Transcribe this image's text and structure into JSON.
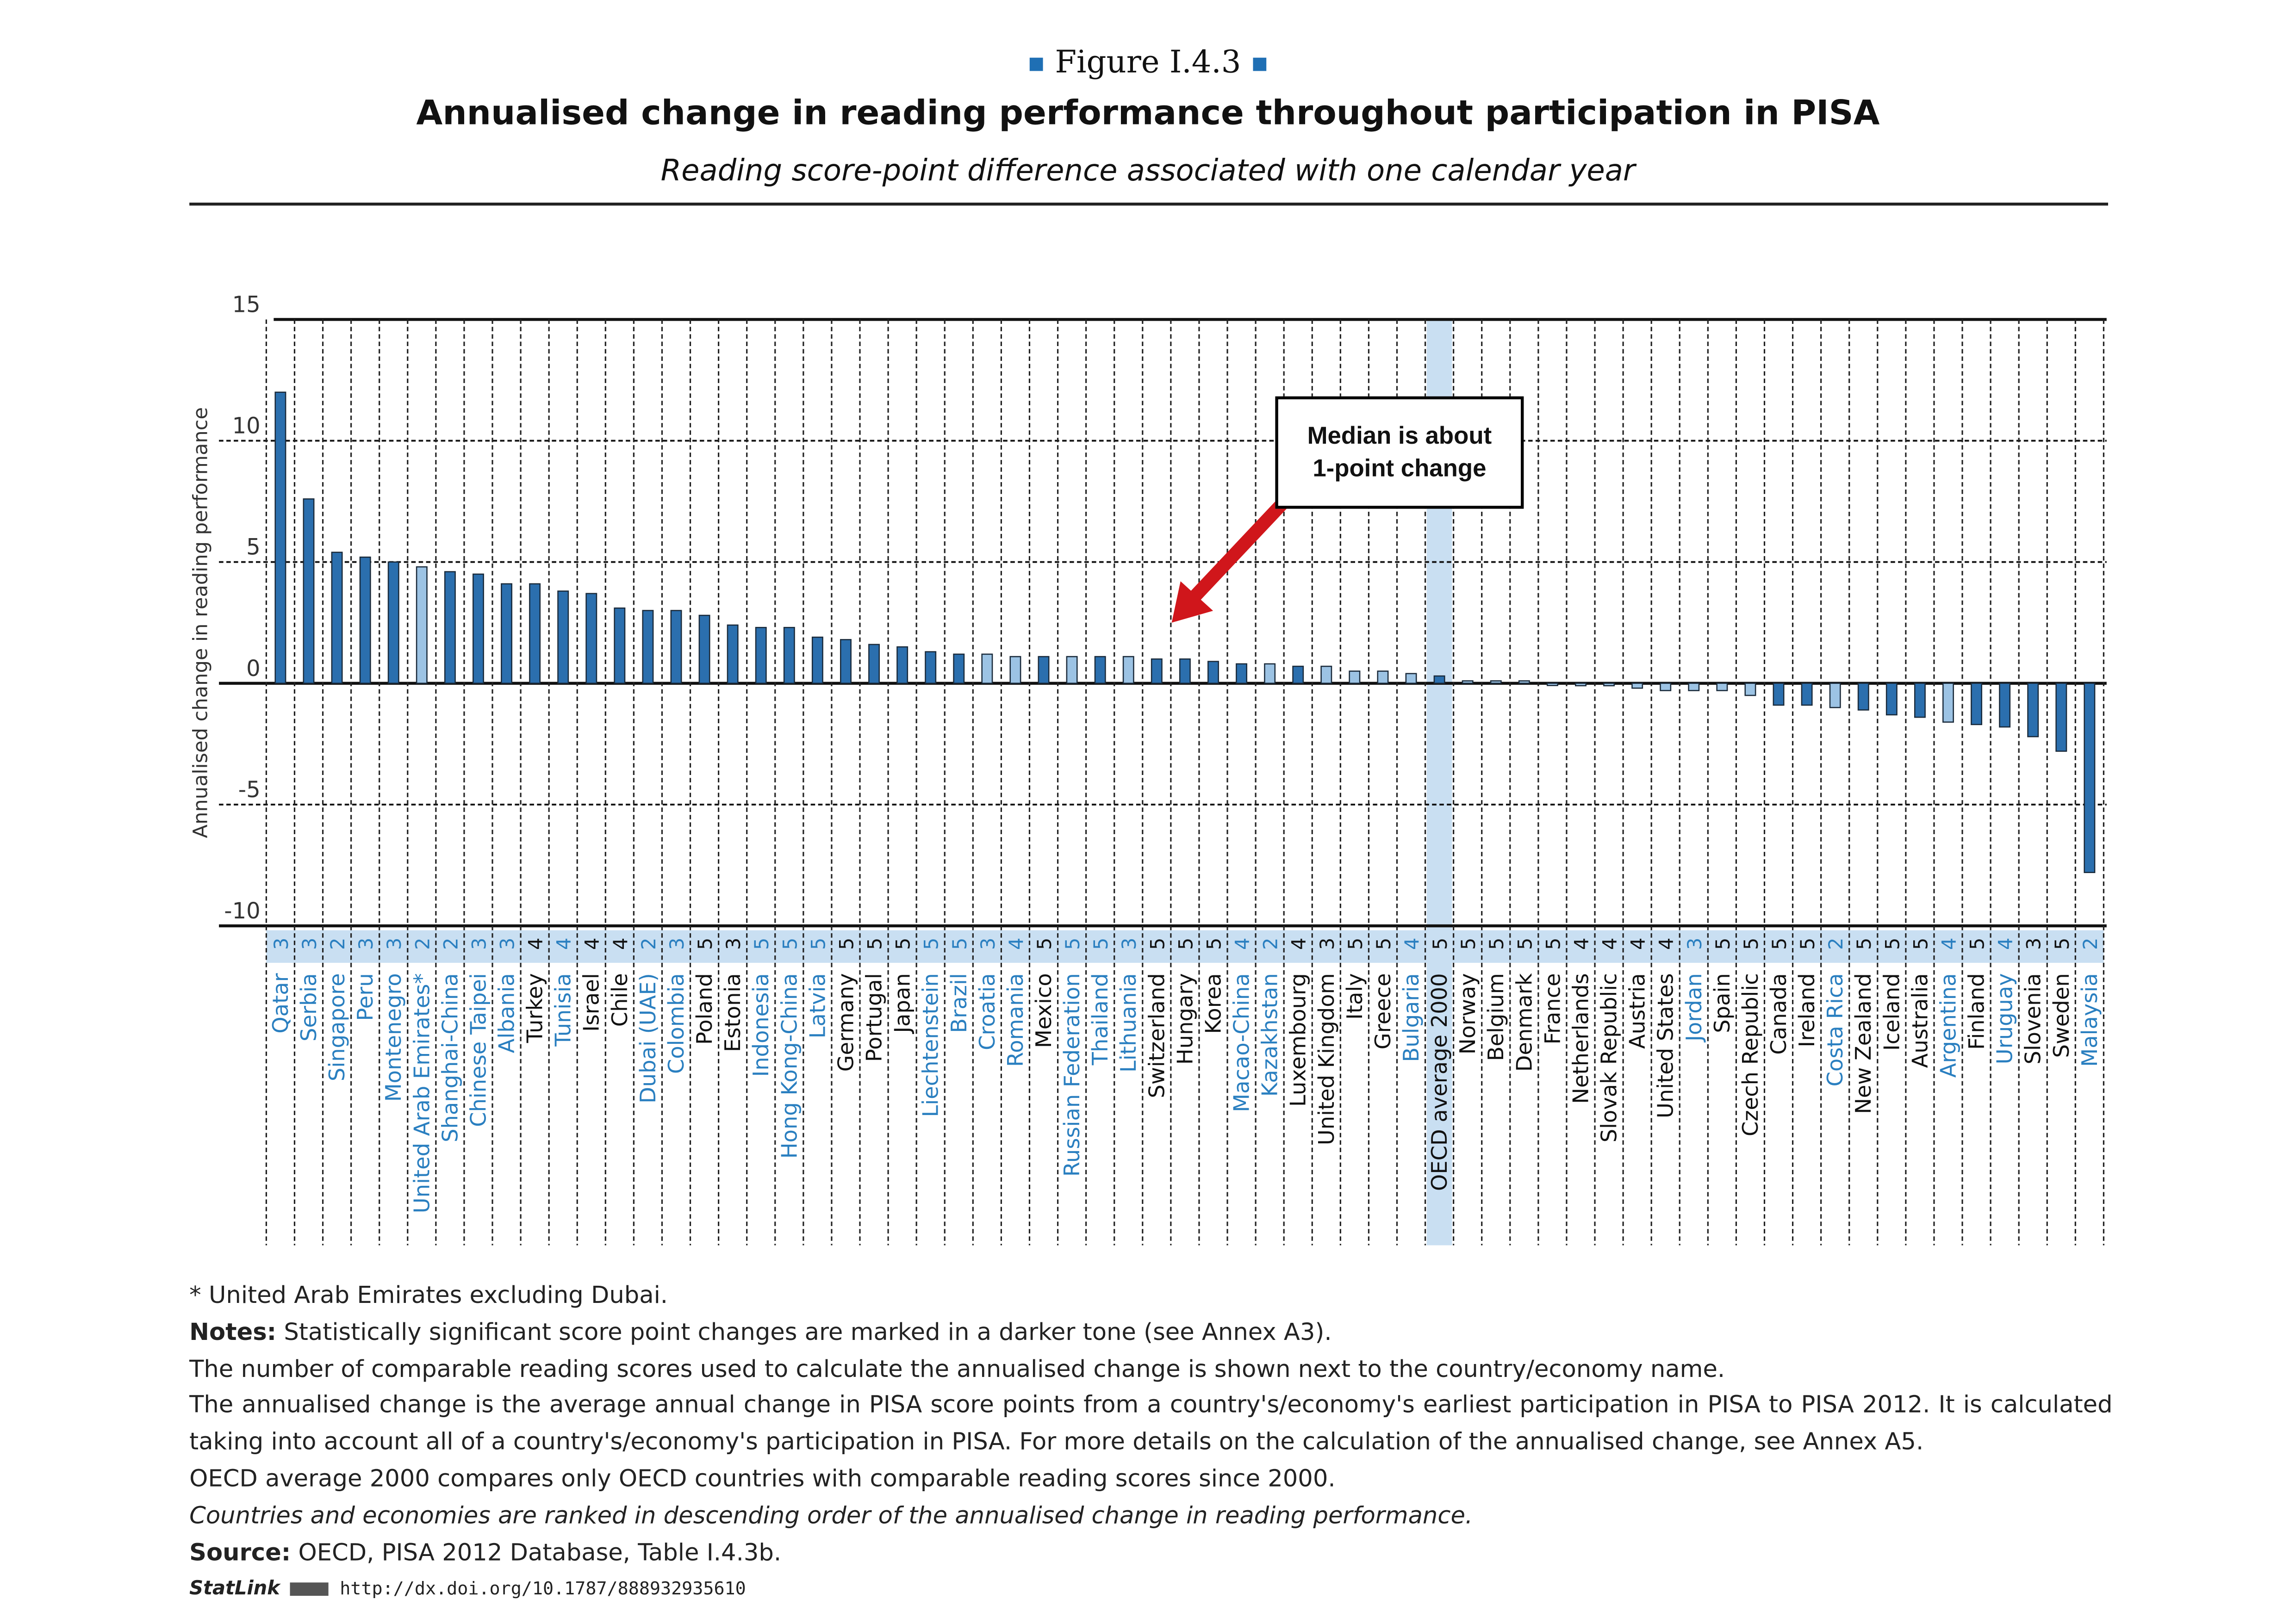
{
  "figure_label": "Figure I.4.3",
  "title": "Annualised change in reading performance throughout participation in PISA",
  "subtitle": "Reading score-point difference associated with one calendar year",
  "annotation": {
    "line1": "Median is about",
    "line2": "1-point change"
  },
  "colors": {
    "significant": "#2b6fae",
    "not_significant": "#9cc3e4",
    "partner_label": "#2a7fc0",
    "oecd_label": "#111111",
    "highlight": "#c9dff2",
    "arrow": "#d0161b"
  },
  "chart_data": {
    "type": "bar",
    "ylabel": "Annualised change in reading performance",
    "ylim": [
      -10,
      15
    ],
    "yticks": [
      15,
      10,
      5,
      0,
      -5,
      -10
    ],
    "grid": true,
    "categories": [
      "Qatar",
      "Serbia",
      "Singapore",
      "Peru",
      "Montenegro",
      "United Arab Emirates*",
      "Shanghai-China",
      "Chinese Taipei",
      "Albania",
      "Turkey",
      "Tunisia",
      "Israel",
      "Chile",
      "Dubai (UAE)",
      "Colombia",
      "Poland",
      "Estonia",
      "Indonesia",
      "Hong Kong-China",
      "Latvia",
      "Germany",
      "Portugal",
      "Japan",
      "Liechtenstein",
      "Brazil",
      "Croatia",
      "Romania",
      "Mexico",
      "Russian Federation",
      "Thailand",
      "Lithuania",
      "Switzerland",
      "Hungary",
      "Korea",
      "Macao-China",
      "Kazakhstan",
      "Luxembourg",
      "United Kingdom",
      "Italy",
      "Greece",
      "Bulgaria",
      "OECD average 2000",
      "Norway",
      "Belgium",
      "Denmark",
      "France",
      "Netherlands",
      "Slovak Republic",
      "Austria",
      "United States",
      "Jordan",
      "Spain",
      "Czech Republic",
      "Canada",
      "Ireland",
      "Costa Rica",
      "New Zealand",
      "Iceland",
      "Australia",
      "Argentina",
      "Finland",
      "Uruguay",
      "Slovenia",
      "Sweden",
      "Malaysia"
    ],
    "values": [
      12.0,
      7.6,
      5.4,
      5.2,
      5.0,
      4.8,
      4.6,
      4.5,
      4.1,
      4.1,
      3.8,
      3.7,
      3.1,
      3.0,
      3.0,
      2.8,
      2.4,
      2.3,
      2.3,
      1.9,
      1.8,
      1.6,
      1.5,
      1.3,
      1.2,
      1.2,
      1.1,
      1.1,
      1.1,
      1.1,
      1.1,
      1.0,
      1.0,
      0.9,
      0.8,
      0.8,
      0.7,
      0.7,
      0.5,
      0.5,
      0.4,
      0.3,
      0.1,
      0.1,
      0.1,
      0.0,
      -0.1,
      -0.1,
      -0.2,
      -0.3,
      -0.3,
      -0.3,
      -0.5,
      -0.9,
      -0.9,
      -1.0,
      -1.1,
      -1.3,
      -1.4,
      -1.6,
      -1.7,
      -1.8,
      -2.2,
      -2.8,
      -7.8
    ],
    "score_counts": [
      3,
      3,
      2,
      3,
      3,
      2,
      2,
      3,
      3,
      4,
      4,
      4,
      4,
      2,
      3,
      5,
      3,
      5,
      5,
      5,
      5,
      5,
      5,
      5,
      5,
      3,
      4,
      5,
      5,
      5,
      3,
      5,
      5,
      5,
      4,
      2,
      4,
      3,
      5,
      5,
      4,
      5,
      5,
      5,
      5,
      5,
      4,
      4,
      4,
      4,
      3,
      5,
      5,
      5,
      5,
      2,
      5,
      5,
      5,
      4,
      5,
      4,
      3,
      5,
      2
    ],
    "significant": [
      true,
      true,
      true,
      true,
      true,
      false,
      true,
      true,
      true,
      true,
      true,
      true,
      true,
      true,
      true,
      true,
      true,
      true,
      true,
      true,
      true,
      true,
      true,
      true,
      true,
      false,
      false,
      true,
      false,
      true,
      false,
      true,
      true,
      true,
      true,
      false,
      true,
      false,
      false,
      false,
      false,
      true,
      false,
      false,
      false,
      false,
      false,
      false,
      false,
      false,
      false,
      false,
      false,
      true,
      true,
      false,
      true,
      true,
      true,
      false,
      true,
      true,
      true,
      true,
      true
    ],
    "partner": [
      true,
      true,
      true,
      true,
      true,
      true,
      true,
      true,
      true,
      false,
      true,
      false,
      false,
      true,
      true,
      false,
      false,
      true,
      true,
      true,
      false,
      false,
      false,
      true,
      true,
      true,
      true,
      false,
      true,
      true,
      true,
      false,
      false,
      false,
      true,
      true,
      false,
      false,
      false,
      false,
      true,
      false,
      false,
      false,
      false,
      false,
      false,
      false,
      false,
      false,
      true,
      false,
      false,
      false,
      false,
      true,
      false,
      false,
      false,
      true,
      false,
      true,
      false,
      false,
      true
    ],
    "highlighted_category": "OECD average 2000"
  },
  "notes": {
    "footnote": "* United Arab Emirates excluding Dubai.",
    "notes_label": "Notes:",
    "notes_text": " Statistically significant score point changes are marked in a darker tone (see Annex A3).",
    "line2": "The number of comparable reading scores used to calculate the annualised change is shown next to the country/economy name.",
    "line3": "The annualised change is the average annual change in PISA score points from a country's/economy's earliest participation in PISA to PISA 2012. It is calculated taking into account all of a country's/economy's participation in PISA. For more details on the calculation of the annualised change, see Annex A5.",
    "line4": "OECD average 2000 compares only OECD countries with comparable reading scores since 2000.",
    "line5": "Countries and economies are ranked in descending order of the annualised change in reading performance.",
    "source_label": "Source:",
    "source_text": " OECD, PISA 2012 Database, Table I.4.3b.",
    "statlink_label": "StatLink",
    "statlink_url": "http://dx.doi.org/10.1787/888932935610"
  }
}
